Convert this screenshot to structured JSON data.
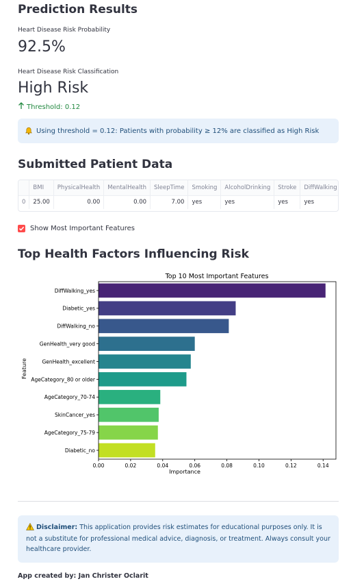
{
  "prediction": {
    "title": "Prediction Results",
    "prob_label": "Heart Disease Risk Probability",
    "prob_value": "92.5%",
    "class_label": "Heart Disease Risk Classification",
    "class_value": "High Risk",
    "threshold_delta": "Threshold: 0.12"
  },
  "threshold_info": {
    "icon": "bell-icon",
    "text": "Using threshold = 0.12: Patients with probability ≥ 12% are classified as High Risk"
  },
  "submitted": {
    "title": "Submitted Patient Data",
    "columns": [
      "",
      "BMI",
      "PhysicalHealth",
      "MentalHealth",
      "SleepTime",
      "Smoking",
      "AlcoholDrinking",
      "Stroke",
      "DiffWalking"
    ],
    "row": [
      "0",
      "25.00",
      "0.00",
      "0.00",
      "7.00",
      "yes",
      "yes",
      "yes",
      "yes"
    ]
  },
  "show_features": {
    "label": "Show Most Important Features",
    "checked": true
  },
  "factors": {
    "title": "Top Health Factors Influencing Risk"
  },
  "chart_data": {
    "type": "bar",
    "orientation": "horizontal",
    "title": "Top 10 Most Important Features",
    "xlabel": "Importance",
    "ylabel": "Feature",
    "categories": [
      "DiffWalking_yes",
      "Diabetic_yes",
      "DiffWalking_no",
      "GenHealth_very good",
      "GenHealth_excellent",
      "AgeCategory_80 or older",
      "AgeCategory_70-74",
      "SkinCancer_yes",
      "AgeCategory_75-79",
      "Diabetic_no"
    ],
    "values": [
      0.1415,
      0.0855,
      0.0812,
      0.06,
      0.0575,
      0.0548,
      0.0385,
      0.0375,
      0.037,
      0.0353
    ],
    "colors": [
      "#482475",
      "#433e85",
      "#38588c",
      "#2d708e",
      "#25858e",
      "#1e9b8a",
      "#2ab07f",
      "#51c56a",
      "#86d549",
      "#c2df23"
    ],
    "xlim": [
      0,
      0.148
    ],
    "xticks": [
      "0.00",
      "0.02",
      "0.04",
      "0.06",
      "0.08",
      "0.10",
      "0.12",
      "0.14"
    ],
    "xtick_values": [
      0,
      0.02,
      0.04,
      0.06,
      0.08,
      0.1,
      0.12,
      0.14
    ],
    "grid": false,
    "legend": "none"
  },
  "disclaimer": {
    "icon": "warning-icon",
    "label": "Disclaimer:",
    "text": " This application provides risk estimates for educational purposes only. It is not a substitute for professional medical advice, diagnosis, or treatment. Always consult your healthcare provider."
  },
  "footer": {
    "text": "App created by: Jan Christer Oclarit"
  }
}
